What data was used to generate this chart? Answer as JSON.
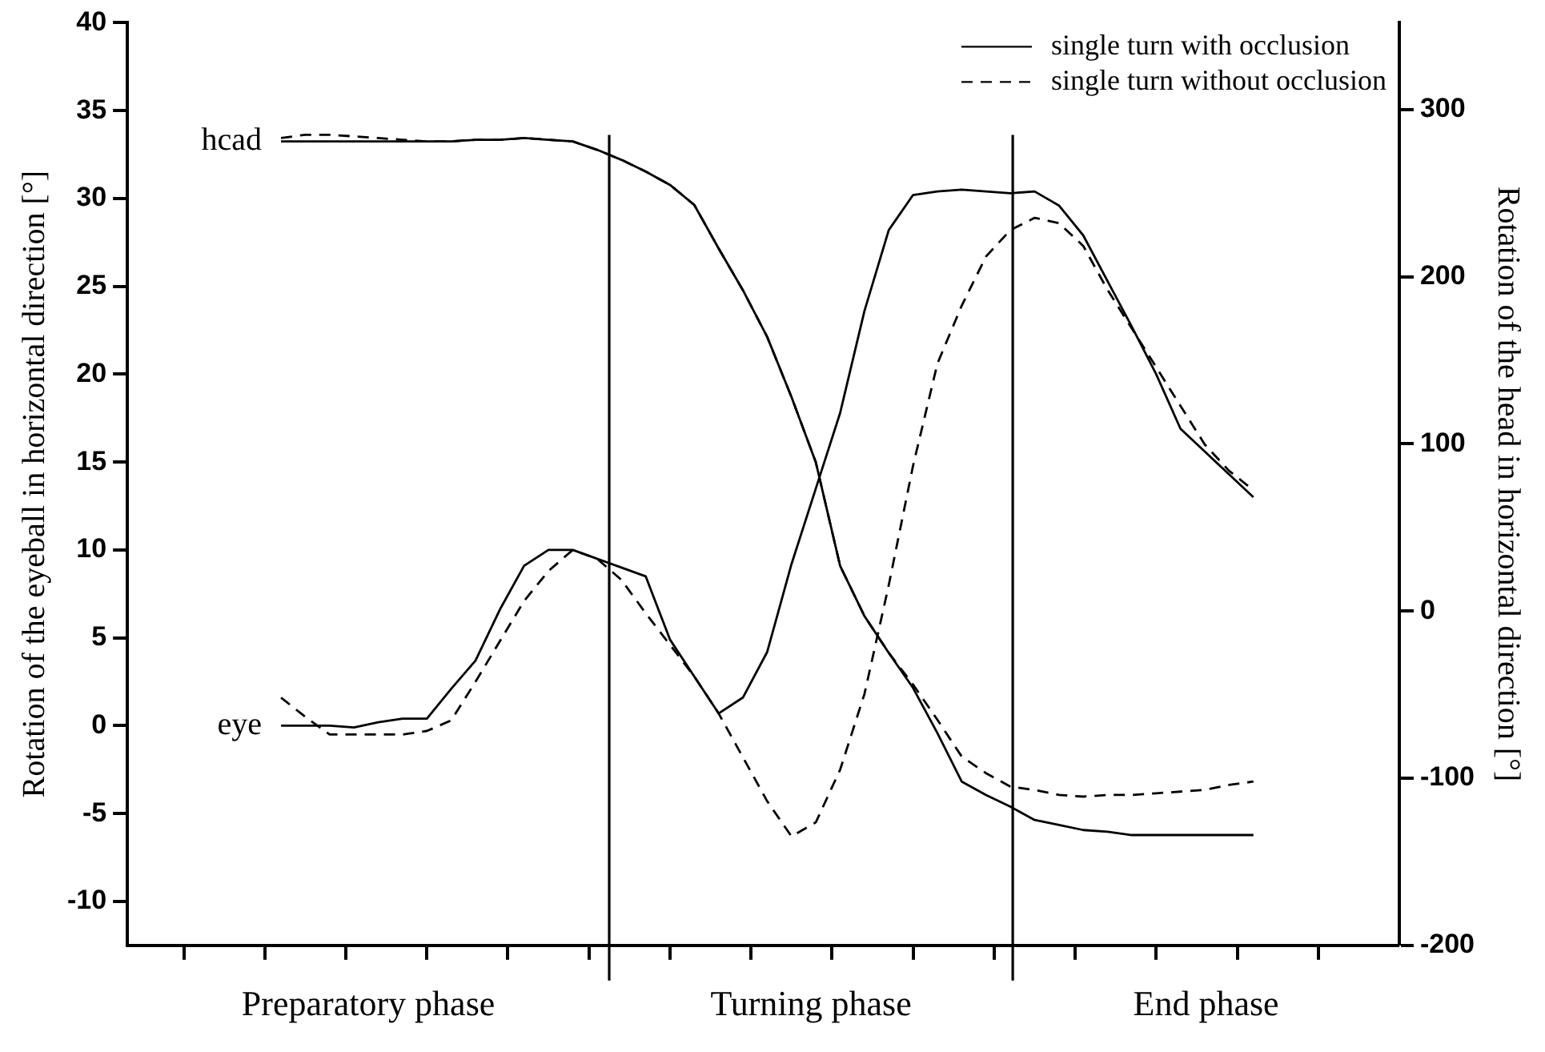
{
  "chart_data": {
    "type": "line",
    "ylabel": "Rotation of the eyeball in horizontal direction [°]",
    "y2label": "Rotation of the head in horizontal direction [°]",
    "categories": [
      null,
      null,
      null,
      null,
      null,
      null,
      null,
      null,
      null,
      null,
      null,
      null,
      null,
      null,
      null,
      null,
      null,
      null,
      null,
      null,
      null,
      null,
      null,
      null,
      null,
      null,
      null,
      null,
      null,
      null,
      null,
      null,
      null,
      null,
      null,
      null,
      null,
      null,
      null,
      null,
      null
    ],
    "ylim": [
      -12.5,
      40
    ],
    "yticks": [
      -10,
      -5,
      0,
      5,
      10,
      15,
      20,
      25,
      30,
      35,
      40
    ],
    "y2lim": [
      -200,
      352
    ],
    "y2ticks": [
      -200,
      -100,
      0,
      100,
      200,
      300
    ],
    "legend": "top right",
    "series": [
      {
        "name": "single turn with occlusion",
        "color": "#000000",
        "axis": "y2",
        "line_style": "solid",
        "values": [
          281,
          281,
          281,
          281,
          281,
          281,
          281,
          281,
          282,
          282,
          283,
          282,
          281,
          276,
          270,
          263,
          255,
          243,
          217,
          192,
          164,
          128,
          89,
          27,
          -3,
          -25,
          -46,
          -73,
          -102,
          -110,
          -117,
          -125,
          -128,
          -131,
          -132,
          -134,
          -134,
          -134,
          -134,
          -134,
          -134
        ]
      },
      {
        "name": "single turn without occlusion",
        "color": "#000000",
        "axis": "y2",
        "line_style": "dashed",
        "values": [
          283,
          285,
          285,
          284,
          283,
          282,
          281,
          281,
          282,
          282,
          283,
          282,
          281,
          276,
          270,
          263,
          255,
          243,
          217,
          192,
          164,
          128,
          89,
          27,
          -3,
          -25,
          -44,
          -65,
          -87,
          -97,
          -105,
          -107,
          -110,
          -111,
          -110,
          -110,
          -109,
          -108,
          -107,
          -104,
          -102
        ]
      },
      {
        "color": "#000000",
        "axis": "y",
        "line_style": "solid",
        "values": [
          0,
          0,
          0,
          -0.1,
          0.2,
          0.4,
          0.4,
          2.1,
          3.7,
          6.6,
          9.1,
          10.0,
          10.0,
          9.5,
          9.0,
          8.5,
          4.9,
          2.8,
          0.7,
          1.6,
          4.2,
          9.2,
          13.5,
          17.8,
          23.6,
          28.2,
          30.2,
          30.4,
          30.5,
          30.4,
          30.3,
          30.4,
          29.6,
          27.9,
          25.3,
          22.7,
          20.0,
          16.9,
          15.6,
          14.3,
          13.0
        ]
      },
      {
        "color": "#000000",
        "axis": "y",
        "line_style": "dashed",
        "values": [
          1.6,
          0.5,
          -0.5,
          -0.5,
          -0.5,
          -0.5,
          -0.3,
          0.3,
          2.5,
          4.8,
          7.1,
          8.8,
          10.0,
          9.5,
          8.3,
          6.4,
          4.6,
          2.8,
          0.7,
          -1.8,
          -4.3,
          -6.3,
          -5.5,
          -2.5,
          1.8,
          8.0,
          14.8,
          20.6,
          23.9,
          26.7,
          28.2,
          28.9,
          28.6,
          27.3,
          24.8,
          22.6,
          20.4,
          18.2,
          16.0,
          14.5,
          13.4
        ]
      }
    ],
    "annotations": [
      "hcad",
      "eye",
      "Preparatory phase",
      "Turning phase",
      "End phase"
    ]
  }
}
